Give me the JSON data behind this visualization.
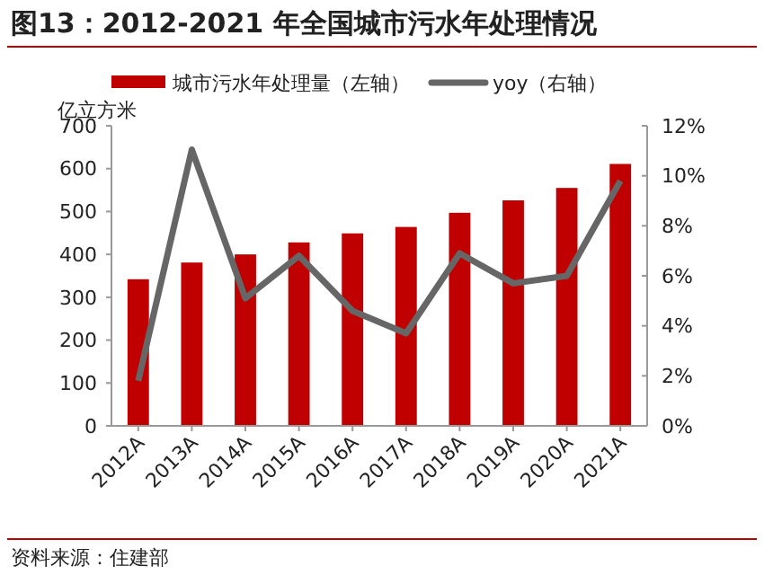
{
  "chart_data": {
    "type": "bar",
    "title": "图13：2012-2021 年全国城市污水年处理情况",
    "ylabel": "亿立方米",
    "categories": [
      "2012A",
      "2013A",
      "2014A",
      "2015A",
      "2016A",
      "2017A",
      "2018A",
      "2019A",
      "2020A",
      "2021A"
    ],
    "series": [
      {
        "name": "城市污水年处理量（左轴）",
        "color": "#c00000",
        "values": [
          342,
          381,
          400,
          428,
          449,
          464,
          497,
          526,
          555,
          611
        ]
      },
      {
        "name": "yoy（右轴）",
        "type": "line",
        "axis": "y2",
        "color": "#666666",
        "values": [
          1.8,
          11.05,
          5.1,
          6.8,
          4.6,
          3.7,
          6.9,
          5.7,
          6.0,
          9.8
        ]
      }
    ],
    "ylim": [
      0,
      700
    ],
    "yticks": [
      0,
      100,
      200,
      300,
      400,
      500,
      600,
      700
    ],
    "y2lim": [
      0,
      12
    ],
    "y2ticks": [
      {
        "value": 0,
        "label": "0%"
      },
      {
        "value": 2,
        "label": "2%"
      },
      {
        "value": 4,
        "label": "4%"
      },
      {
        "value": 6,
        "label": "6%"
      },
      {
        "value": 8,
        "label": "8%"
      },
      {
        "value": 10,
        "label": "10%"
      },
      {
        "value": 12,
        "label": "12%"
      }
    ],
    "legend": "top",
    "marker": "none",
    "line_style": "solid",
    "annotations": [
      "资料来源：住建部"
    ]
  }
}
